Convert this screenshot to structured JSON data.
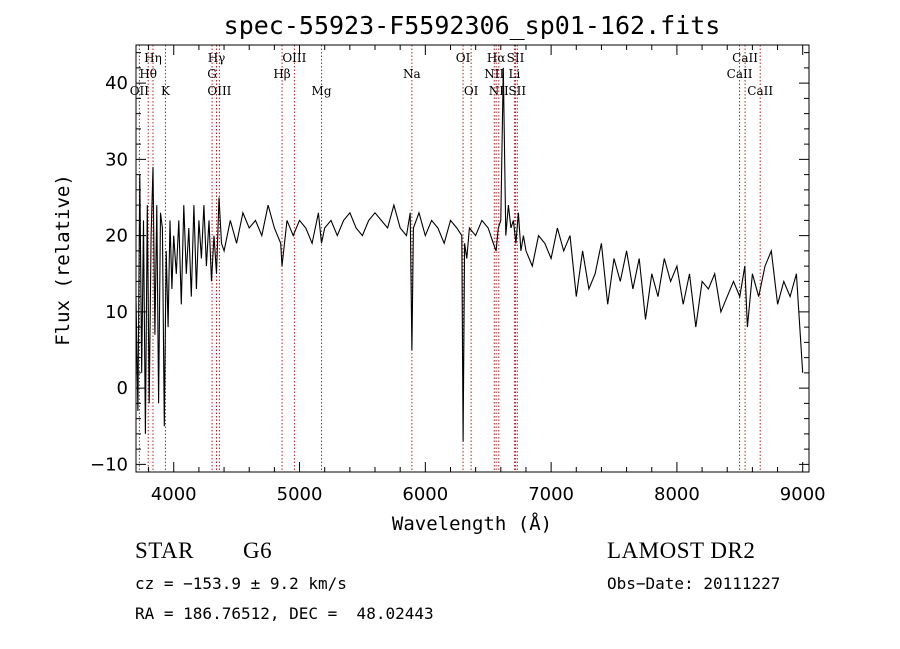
{
  "chart_data": {
    "type": "line",
    "title": "spec-55923-F5592306_sp01-162.fits",
    "xlabel": "Wavelength (Å)",
    "ylabel": "Flux (relative)",
    "xlim": [
      3700,
      9050
    ],
    "ylim": [
      -11,
      45
    ],
    "xticks": [
      4000,
      5000,
      6000,
      7000,
      8000,
      9000
    ],
    "yticks": [
      -10,
      0,
      10,
      20,
      30,
      40
    ],
    "grid": false,
    "line_color": "#000000",
    "marker_color": "#b22222",
    "series": [
      {
        "x": [
          3700,
          3715,
          3730,
          3745,
          3760,
          3775,
          3790,
          3805,
          3820,
          3835,
          3850,
          3865,
          3880,
          3895,
          3910,
          3925,
          3940,
          3955,
          3970,
          3985,
          4000,
          4020,
          4040,
          4060,
          4080,
          4100,
          4120,
          4140,
          4160,
          4180,
          4200,
          4220,
          4240,
          4260,
          4280,
          4300,
          4320,
          4340,
          4360,
          4380,
          4400,
          4450,
          4500,
          4550,
          4600,
          4650,
          4700,
          4750,
          4800,
          4850,
          4861,
          4900,
          4950,
          5000,
          5050,
          5100,
          5150,
          5175,
          5200,
          5250,
          5300,
          5350,
          5400,
          5450,
          5500,
          5550,
          5600,
          5650,
          5700,
          5750,
          5800,
          5850,
          5880,
          5893,
          5905,
          5950,
          6000,
          6050,
          6100,
          6150,
          6200,
          6250,
          6290,
          6300,
          6312,
          6330,
          6350,
          6400,
          6450,
          6500,
          6540,
          6563,
          6580,
          6600,
          6620,
          6640,
          6660,
          6680,
          6700,
          6720,
          6740,
          6760,
          6780,
          6800,
          6850,
          6900,
          6950,
          7000,
          7050,
          7100,
          7150,
          7200,
          7250,
          7300,
          7350,
          7400,
          7450,
          7500,
          7550,
          7600,
          7650,
          7700,
          7750,
          7800,
          7850,
          7900,
          7950,
          8000,
          8050,
          8100,
          8150,
          8200,
          8250,
          8300,
          8350,
          8400,
          8450,
          8500,
          8540,
          8560,
          8600,
          8650,
          8700,
          8750,
          8800,
          8850,
          8900,
          8950,
          9000
        ],
        "y": [
          12,
          -3,
          28,
          2,
          22,
          -6,
          24,
          -2,
          20,
          29,
          7,
          24,
          -2,
          23,
          21,
          -5,
          18,
          8,
          22,
          13,
          20,
          15,
          22,
          11,
          24,
          15,
          21,
          12,
          24,
          13,
          22,
          17,
          24,
          16,
          22,
          14,
          20,
          15,
          25,
          19,
          18,
          22,
          19,
          23,
          21,
          22,
          20,
          24,
          21,
          19,
          16,
          22,
          20,
          22,
          21,
          19,
          23,
          19,
          21,
          22,
          20,
          22,
          23,
          21,
          20,
          22,
          23,
          22,
          21,
          24,
          21,
          20,
          23,
          5,
          21,
          23,
          20,
          22,
          21,
          19,
          22,
          21,
          20,
          -7,
          19,
          17,
          21,
          20,
          22,
          21,
          19,
          18,
          21,
          22,
          42,
          20,
          24,
          21,
          22,
          19,
          23,
          18,
          20,
          18,
          16,
          20,
          19,
          17,
          21,
          18,
          20,
          12,
          18,
          13,
          15,
          19,
          11,
          17,
          14,
          18,
          13,
          17,
          9,
          15,
          12,
          17,
          14,
          16,
          11,
          15,
          8,
          14,
          13,
          15,
          10,
          12,
          14,
          12,
          16,
          8,
          15,
          12,
          16,
          18,
          11,
          14,
          12,
          15,
          2
        ]
      }
    ],
    "lines": [
      {
        "label": "Hη",
        "wl": 3835,
        "row": 0
      },
      {
        "label": "Hθ",
        "wl": 3797,
        "row": 1
      },
      {
        "label": "OII",
        "wl": 3727,
        "row": 2
      },
      {
        "label": "K",
        "wl": 3934,
        "row": 2
      },
      {
        "label": "Hγ",
        "wl": 4340,
        "row": 0
      },
      {
        "label": "G",
        "wl": 4305,
        "row": 1
      },
      {
        "label": "OIII",
        "wl": 4363,
        "row": 2
      },
      {
        "label": "OIII",
        "wl": 4959,
        "row": 0
      },
      {
        "label": "Hβ",
        "wl": 4861,
        "row": 1
      },
      {
        "label": "Mg",
        "wl": 5175,
        "row": 2
      },
      {
        "label": "Na",
        "wl": 5893,
        "row": 1
      },
      {
        "label": "OI",
        "wl": 6300,
        "row": 0
      },
      {
        "label": "OI",
        "wl": 6364,
        "row": 2
      },
      {
        "label": "Hα",
        "wl": 6563,
        "row": 0
      },
      {
        "label": "NII",
        "wl": 6548,
        "row": 1
      },
      {
        "label": "NII",
        "wl": 6584,
        "row": 2
      },
      {
        "label": "SII",
        "wl": 6717,
        "row": 0
      },
      {
        "label": "Li",
        "wl": 6708,
        "row": 1
      },
      {
        "label": "SII",
        "wl": 6731,
        "row": 2
      },
      {
        "label": "CaII",
        "wl": 8542,
        "row": 0
      },
      {
        "label": "CaII",
        "wl": 8498,
        "row": 1
      },
      {
        "label": "CaII",
        "wl": 8662,
        "row": 2
      }
    ]
  },
  "info": {
    "class": "STAR",
    "subclass": "G6",
    "survey": "LAMOST DR2",
    "cz": "cz = −153.9 ± 9.2 km/s",
    "obsdate": "Obs−Date: 20111227",
    "radec": "RA = 186.76512, DEC =  48.02443"
  }
}
